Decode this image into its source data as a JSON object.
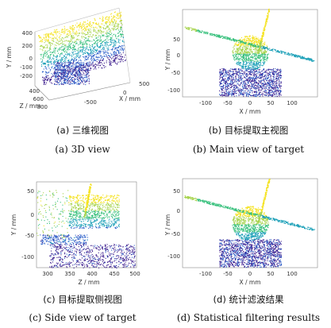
{
  "panels": {
    "a": {
      "caption_cn": "(a)  三维视图",
      "caption_en": "(a) 3D view",
      "y_axis_label": "Y / mm",
      "y_ticks": [
        "400",
        "200",
        "0",
        "-100",
        "-200"
      ],
      "z_axis_label": "Z / mm",
      "z_ticks": [
        "400",
        "600",
        "800"
      ],
      "x_axis_label": "X / mm",
      "x_ticks": [
        "500",
        "0",
        "-500"
      ]
    },
    "b": {
      "caption_cn": "(b)  目标提取主视图",
      "caption_en": "(b) Main view of target",
      "y_axis_label": "Y / mm",
      "y_ticks": [
        "50",
        "0",
        "-50",
        "-100"
      ],
      "x_axis_label": "X / mm",
      "x_ticks": [
        "-100",
        "-50",
        "0",
        "50",
        "100"
      ]
    },
    "c": {
      "caption_cn": "(c)  目标提取侧视图",
      "caption_en": "(c) Side view of target",
      "y_axis_label": "Y / mm",
      "y_ticks": [
        "50",
        "0",
        "-50",
        "-100"
      ],
      "x_axis_label": "Z / mm",
      "x_ticks": [
        "300",
        "350",
        "400",
        "450",
        "500"
      ]
    },
    "d": {
      "caption_cn": "(d)  统计滤波结果",
      "caption_en": "(d) Statistical filtering results",
      "y_axis_label": "Y / mm",
      "y_ticks": [
        "50",
        "0",
        "-50",
        "-100"
      ],
      "x_axis_label": "X / mm",
      "x_ticks": [
        "-100",
        "-50",
        "0",
        "50",
        "100"
      ]
    }
  },
  "colors": {
    "colormap": [
      "#3b1a8c",
      "#2a5ec9",
      "#1a9fb7",
      "#34bf7a",
      "#a6d34b",
      "#f4e21c"
    ],
    "axis": "#444444"
  }
}
